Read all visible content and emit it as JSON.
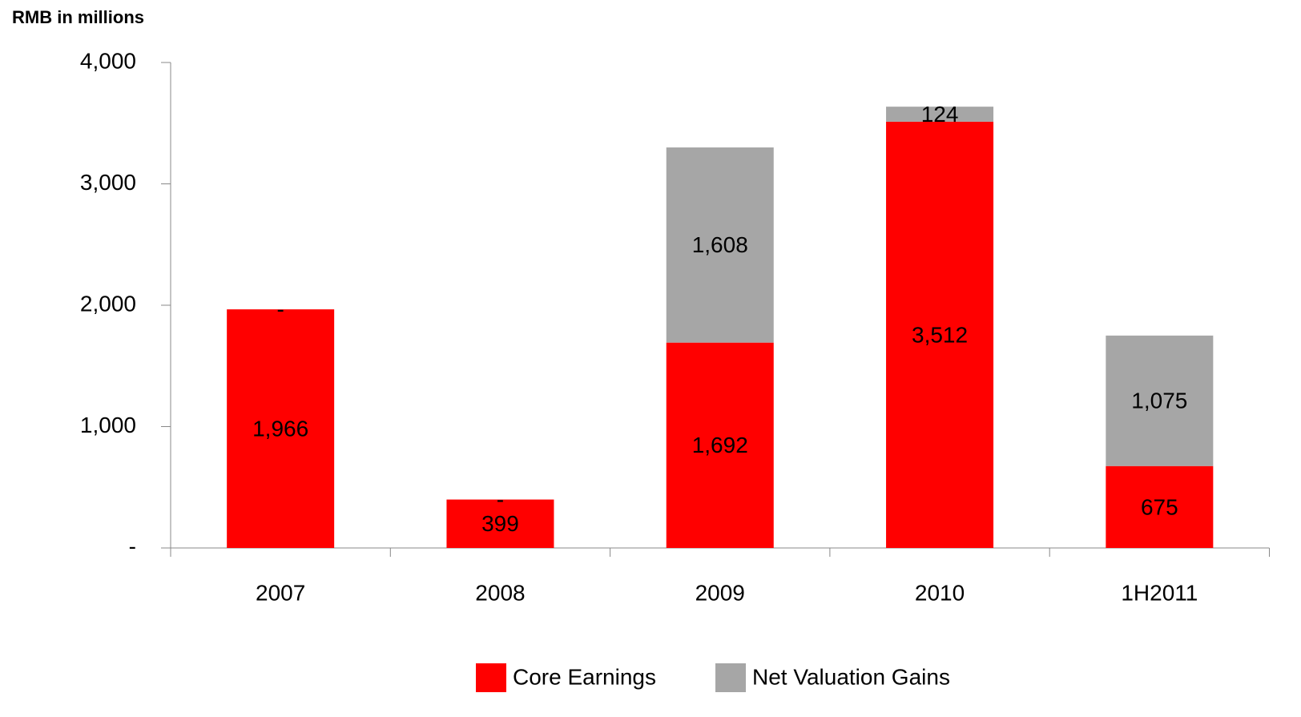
{
  "chart_data": {
    "type": "stacked_bar",
    "axis_title": "RMB in millions",
    "categories": [
      "2007",
      "2008",
      "2009",
      "2010",
      "1H2011"
    ],
    "series": [
      {
        "name": "Core Earnings",
        "color": "#ff0000",
        "values": [
          1966,
          399,
          1692,
          3512,
          675
        ],
        "value_labels": [
          "1,966",
          "399",
          "1,692",
          "3,512",
          "675"
        ]
      },
      {
        "name": "Net Valuation Gains",
        "color": "#a6a6a6",
        "values": [
          0,
          0,
          1608,
          124,
          1075
        ],
        "value_labels": [
          "-",
          "-",
          "1,608",
          "124",
          "1,075"
        ]
      }
    ],
    "ylim": [
      0,
      4000
    ],
    "yticks": [
      {
        "value": 0,
        "label": "-"
      },
      {
        "value": 1000,
        "label": "1,000"
      },
      {
        "value": 2000,
        "label": "2,000"
      },
      {
        "value": 3000,
        "label": "3,000"
      },
      {
        "value": 4000,
        "label": "4,000"
      }
    ],
    "legend": "bottom"
  }
}
